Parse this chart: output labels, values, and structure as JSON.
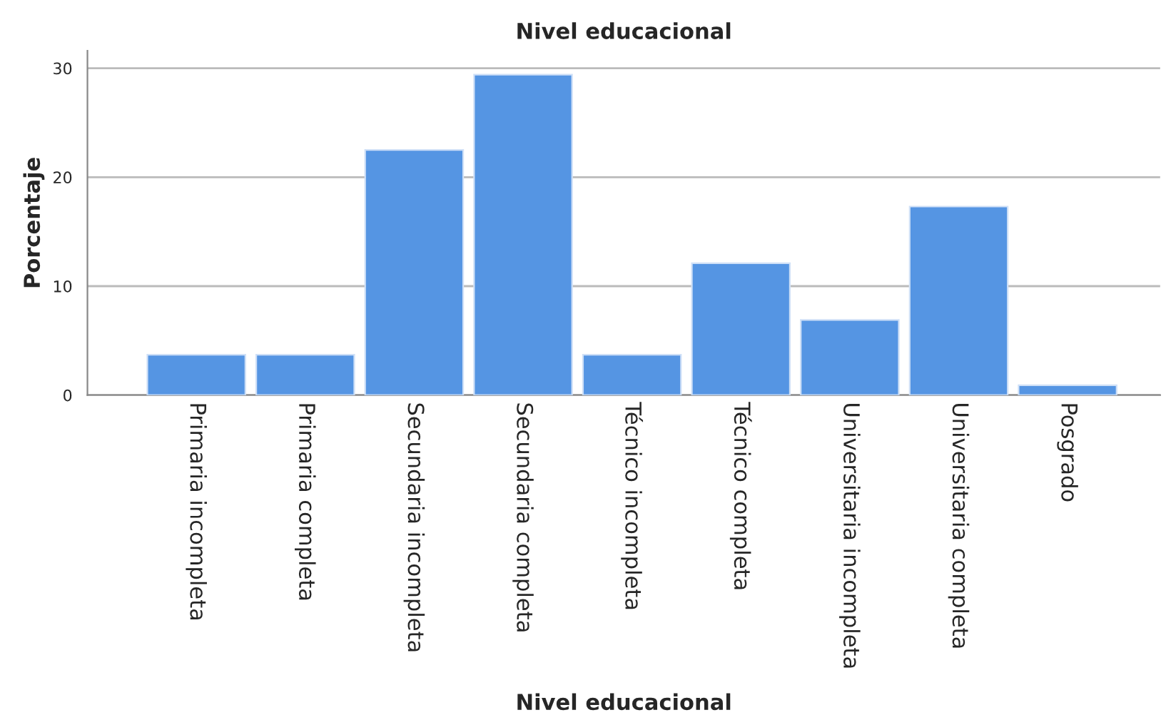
{
  "chart_data": {
    "type": "bar",
    "title": "Nivel educacional",
    "xlabel": "Nivel educacional",
    "ylabel": "Porcentaje",
    "categories": [
      "Primaria incompleta",
      "Primaria completa",
      "Secundaria incompleta",
      "Secundaria completa",
      "Técnico incompleta",
      "Técnico completa",
      "Universitaria incompleta",
      "Universitaria completa",
      "Posgrado"
    ],
    "values": [
      3.7,
      3.7,
      22.5,
      29.4,
      3.7,
      12.1,
      6.9,
      17.3,
      0.9
    ],
    "color": "#5595e3",
    "ylim": [
      0,
      31.6
    ],
    "yticks": [
      0,
      10,
      20,
      30
    ],
    "grid": "y"
  }
}
